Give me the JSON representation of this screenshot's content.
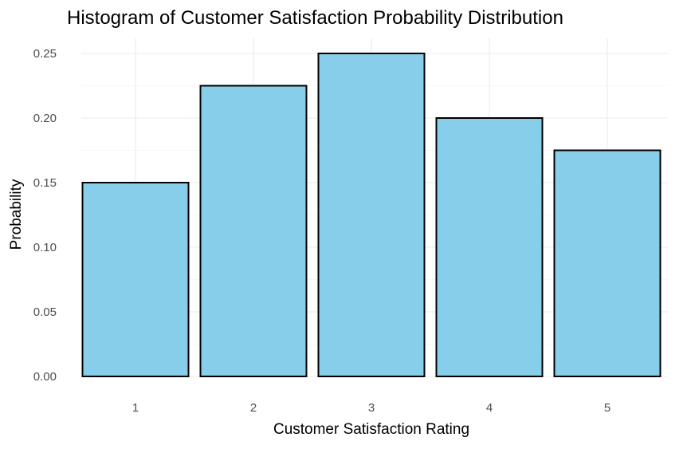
{
  "colors": {
    "bar_fill": "#87CEEB",
    "bar_stroke": "#000000"
  },
  "chart_data": {
    "type": "bar",
    "title": "Histogram of Customer Satisfaction Probability Distribution",
    "xlabel": "Customer Satisfaction Rating",
    "ylabel": "Probability",
    "categories": [
      "1",
      "2",
      "3",
      "4",
      "5"
    ],
    "values": [
      0.15,
      0.225,
      0.25,
      0.2,
      0.175
    ],
    "ylim": [
      0,
      0.25
    ],
    "yticks": [
      "0.00",
      "0.05",
      "0.10",
      "0.15",
      "0.20",
      "0.25"
    ],
    "grid": true,
    "legend": "none"
  }
}
